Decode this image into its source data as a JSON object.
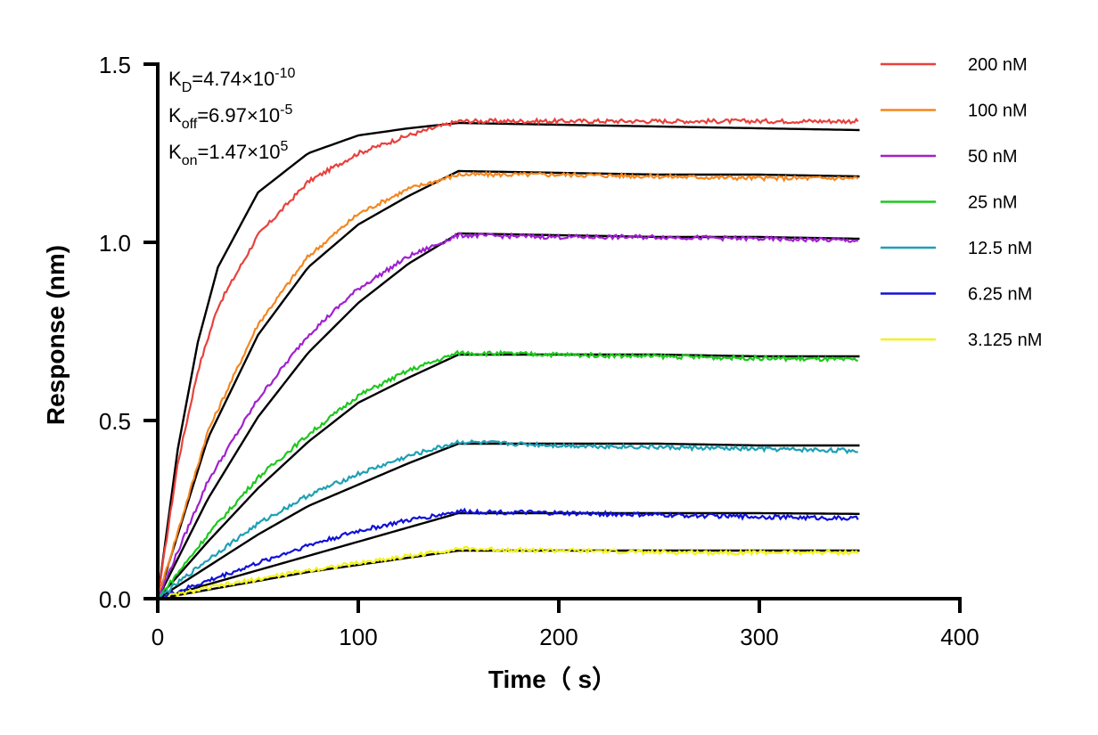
{
  "chart_data": {
    "type": "line",
    "xlabel": "Time（ s）",
    "ylabel": "Response (nm)",
    "xlim": [
      0,
      400
    ],
    "ylim": [
      0,
      1.5
    ],
    "x_ticks": [
      "0",
      "100",
      "200",
      "300",
      "400"
    ],
    "y_ticks": [
      "0.0",
      "0.5",
      "1.0",
      "1.5"
    ],
    "grid": false,
    "legend_position": "right",
    "annotations": [
      {
        "base": "K",
        "sub": "D",
        "eq": "=4.74×10",
        "sup": "-10"
      },
      {
        "base": "K",
        "sub": "off",
        "eq": "=6.97×10",
        "sup": "-5"
      },
      {
        "base": "K",
        "sub": "on",
        "eq": "=1.47×10",
        "sup": "5"
      }
    ],
    "association_end": 150,
    "end_time": 350,
    "series": [
      {
        "name": "200 nM",
        "color": "#e8413c",
        "values": [
          [
            0,
            0
          ],
          [
            10,
            0.38
          ],
          [
            20,
            0.64
          ],
          [
            30,
            0.82
          ],
          [
            50,
            1.02
          ],
          [
            75,
            1.17
          ],
          [
            100,
            1.25
          ],
          [
            125,
            1.3
          ],
          [
            150,
            1.34
          ],
          [
            200,
            1.34
          ],
          [
            250,
            1.34
          ],
          [
            300,
            1.34
          ],
          [
            350,
            1.34
          ]
        ]
      },
      {
        "name": "100 nM",
        "color": "#f5861f",
        "values": [
          [
            0,
            0
          ],
          [
            25,
            0.47
          ],
          [
            50,
            0.77
          ],
          [
            75,
            0.96
          ],
          [
            100,
            1.08
          ],
          [
            125,
            1.15
          ],
          [
            150,
            1.19
          ],
          [
            200,
            1.19
          ],
          [
            250,
            1.185
          ],
          [
            300,
            1.18
          ],
          [
            350,
            1.18
          ]
        ]
      },
      {
        "name": "50 nM",
        "color": "#a020d0",
        "values": [
          [
            0,
            0
          ],
          [
            25,
            0.33
          ],
          [
            50,
            0.56
          ],
          [
            75,
            0.74
          ],
          [
            100,
            0.87
          ],
          [
            125,
            0.96
          ],
          [
            150,
            1.02
          ],
          [
            200,
            1.015
          ],
          [
            250,
            1.015
          ],
          [
            300,
            1.01
          ],
          [
            350,
            1.005
          ]
        ]
      },
      {
        "name": "25 nM",
        "color": "#1dc81d",
        "values": [
          [
            0,
            0
          ],
          [
            25,
            0.18
          ],
          [
            50,
            0.34
          ],
          [
            75,
            0.46
          ],
          [
            100,
            0.57
          ],
          [
            125,
            0.64
          ],
          [
            150,
            0.69
          ],
          [
            200,
            0.685
          ],
          [
            250,
            0.68
          ],
          [
            300,
            0.675
          ],
          [
            350,
            0.67
          ]
        ]
      },
      {
        "name": "12.5 nM",
        "color": "#1ea0b4",
        "values": [
          [
            0,
            0
          ],
          [
            25,
            0.11
          ],
          [
            50,
            0.21
          ],
          [
            75,
            0.29
          ],
          [
            100,
            0.35
          ],
          [
            125,
            0.4
          ],
          [
            150,
            0.44
          ],
          [
            200,
            0.43
          ],
          [
            250,
            0.425
          ],
          [
            300,
            0.42
          ],
          [
            350,
            0.415
          ]
        ]
      },
      {
        "name": "6.25 nM",
        "color": "#1010d8",
        "values": [
          [
            0,
            0
          ],
          [
            25,
            0.05
          ],
          [
            50,
            0.1
          ],
          [
            75,
            0.15
          ],
          [
            100,
            0.19
          ],
          [
            125,
            0.22
          ],
          [
            150,
            0.245
          ],
          [
            200,
            0.24
          ],
          [
            250,
            0.235
          ],
          [
            300,
            0.23
          ],
          [
            350,
            0.225
          ]
        ]
      },
      {
        "name": "3.125 nM",
        "color": "#f2f21a",
        "values": [
          [
            0,
            0
          ],
          [
            25,
            0.03
          ],
          [
            50,
            0.055
          ],
          [
            75,
            0.08
          ],
          [
            100,
            0.1
          ],
          [
            125,
            0.12
          ],
          [
            150,
            0.14
          ],
          [
            200,
            0.135
          ],
          [
            250,
            0.13
          ],
          [
            300,
            0.13
          ],
          [
            350,
            0.13
          ]
        ]
      }
    ],
    "fits": [
      {
        "name": "fit 200 nM",
        "color": "#000000",
        "values": [
          [
            0,
            0
          ],
          [
            10,
            0.42
          ],
          [
            20,
            0.72
          ],
          [
            30,
            0.93
          ],
          [
            50,
            1.14
          ],
          [
            75,
            1.25
          ],
          [
            100,
            1.3
          ],
          [
            125,
            1.32
          ],
          [
            150,
            1.335
          ],
          [
            200,
            1.33
          ],
          [
            250,
            1.325
          ],
          [
            300,
            1.32
          ],
          [
            350,
            1.315
          ]
        ]
      },
      {
        "name": "fit 100 nM",
        "color": "#000000",
        "values": [
          [
            0,
            0
          ],
          [
            25,
            0.45
          ],
          [
            50,
            0.74
          ],
          [
            75,
            0.93
          ],
          [
            100,
            1.05
          ],
          [
            125,
            1.13
          ],
          [
            150,
            1.2
          ],
          [
            200,
            1.195
          ],
          [
            250,
            1.19
          ],
          [
            300,
            1.19
          ],
          [
            350,
            1.185
          ]
        ]
      },
      {
        "name": "fit 50 nM",
        "color": "#000000",
        "values": [
          [
            0,
            0
          ],
          [
            25,
            0.28
          ],
          [
            50,
            0.51
          ],
          [
            75,
            0.69
          ],
          [
            100,
            0.83
          ],
          [
            125,
            0.94
          ],
          [
            150,
            1.025
          ],
          [
            200,
            1.02
          ],
          [
            250,
            1.015
          ],
          [
            300,
            1.015
          ],
          [
            350,
            1.01
          ]
        ]
      },
      {
        "name": "fit 25 nM",
        "color": "#000000",
        "values": [
          [
            0,
            0
          ],
          [
            25,
            0.16
          ],
          [
            50,
            0.31
          ],
          [
            75,
            0.44
          ],
          [
            100,
            0.55
          ],
          [
            125,
            0.62
          ],
          [
            150,
            0.685
          ],
          [
            200,
            0.685
          ],
          [
            250,
            0.685
          ],
          [
            300,
            0.68
          ],
          [
            350,
            0.68
          ]
        ]
      },
      {
        "name": "fit 12.5 nM",
        "color": "#000000",
        "values": [
          [
            0,
            0
          ],
          [
            25,
            0.09
          ],
          [
            50,
            0.18
          ],
          [
            75,
            0.26
          ],
          [
            100,
            0.32
          ],
          [
            125,
            0.38
          ],
          [
            150,
            0.435
          ],
          [
            200,
            0.435
          ],
          [
            250,
            0.435
          ],
          [
            300,
            0.43
          ],
          [
            350,
            0.43
          ]
        ]
      },
      {
        "name": "fit 6.25 nM",
        "color": "#000000",
        "values": [
          [
            0,
            0
          ],
          [
            25,
            0.04
          ],
          [
            50,
            0.08
          ],
          [
            75,
            0.12
          ],
          [
            100,
            0.16
          ],
          [
            125,
            0.2
          ],
          [
            150,
            0.24
          ],
          [
            200,
            0.24
          ],
          [
            250,
            0.24
          ],
          [
            300,
            0.24
          ],
          [
            350,
            0.238
          ]
        ]
      },
      {
        "name": "fit 3.125 nM",
        "color": "#000000",
        "values": [
          [
            0,
            0
          ],
          [
            25,
            0.025
          ],
          [
            50,
            0.05
          ],
          [
            75,
            0.075
          ],
          [
            100,
            0.095
          ],
          [
            125,
            0.115
          ],
          [
            150,
            0.135
          ],
          [
            200,
            0.135
          ],
          [
            250,
            0.135
          ],
          [
            300,
            0.135
          ],
          [
            350,
            0.135
          ]
        ]
      }
    ]
  }
}
